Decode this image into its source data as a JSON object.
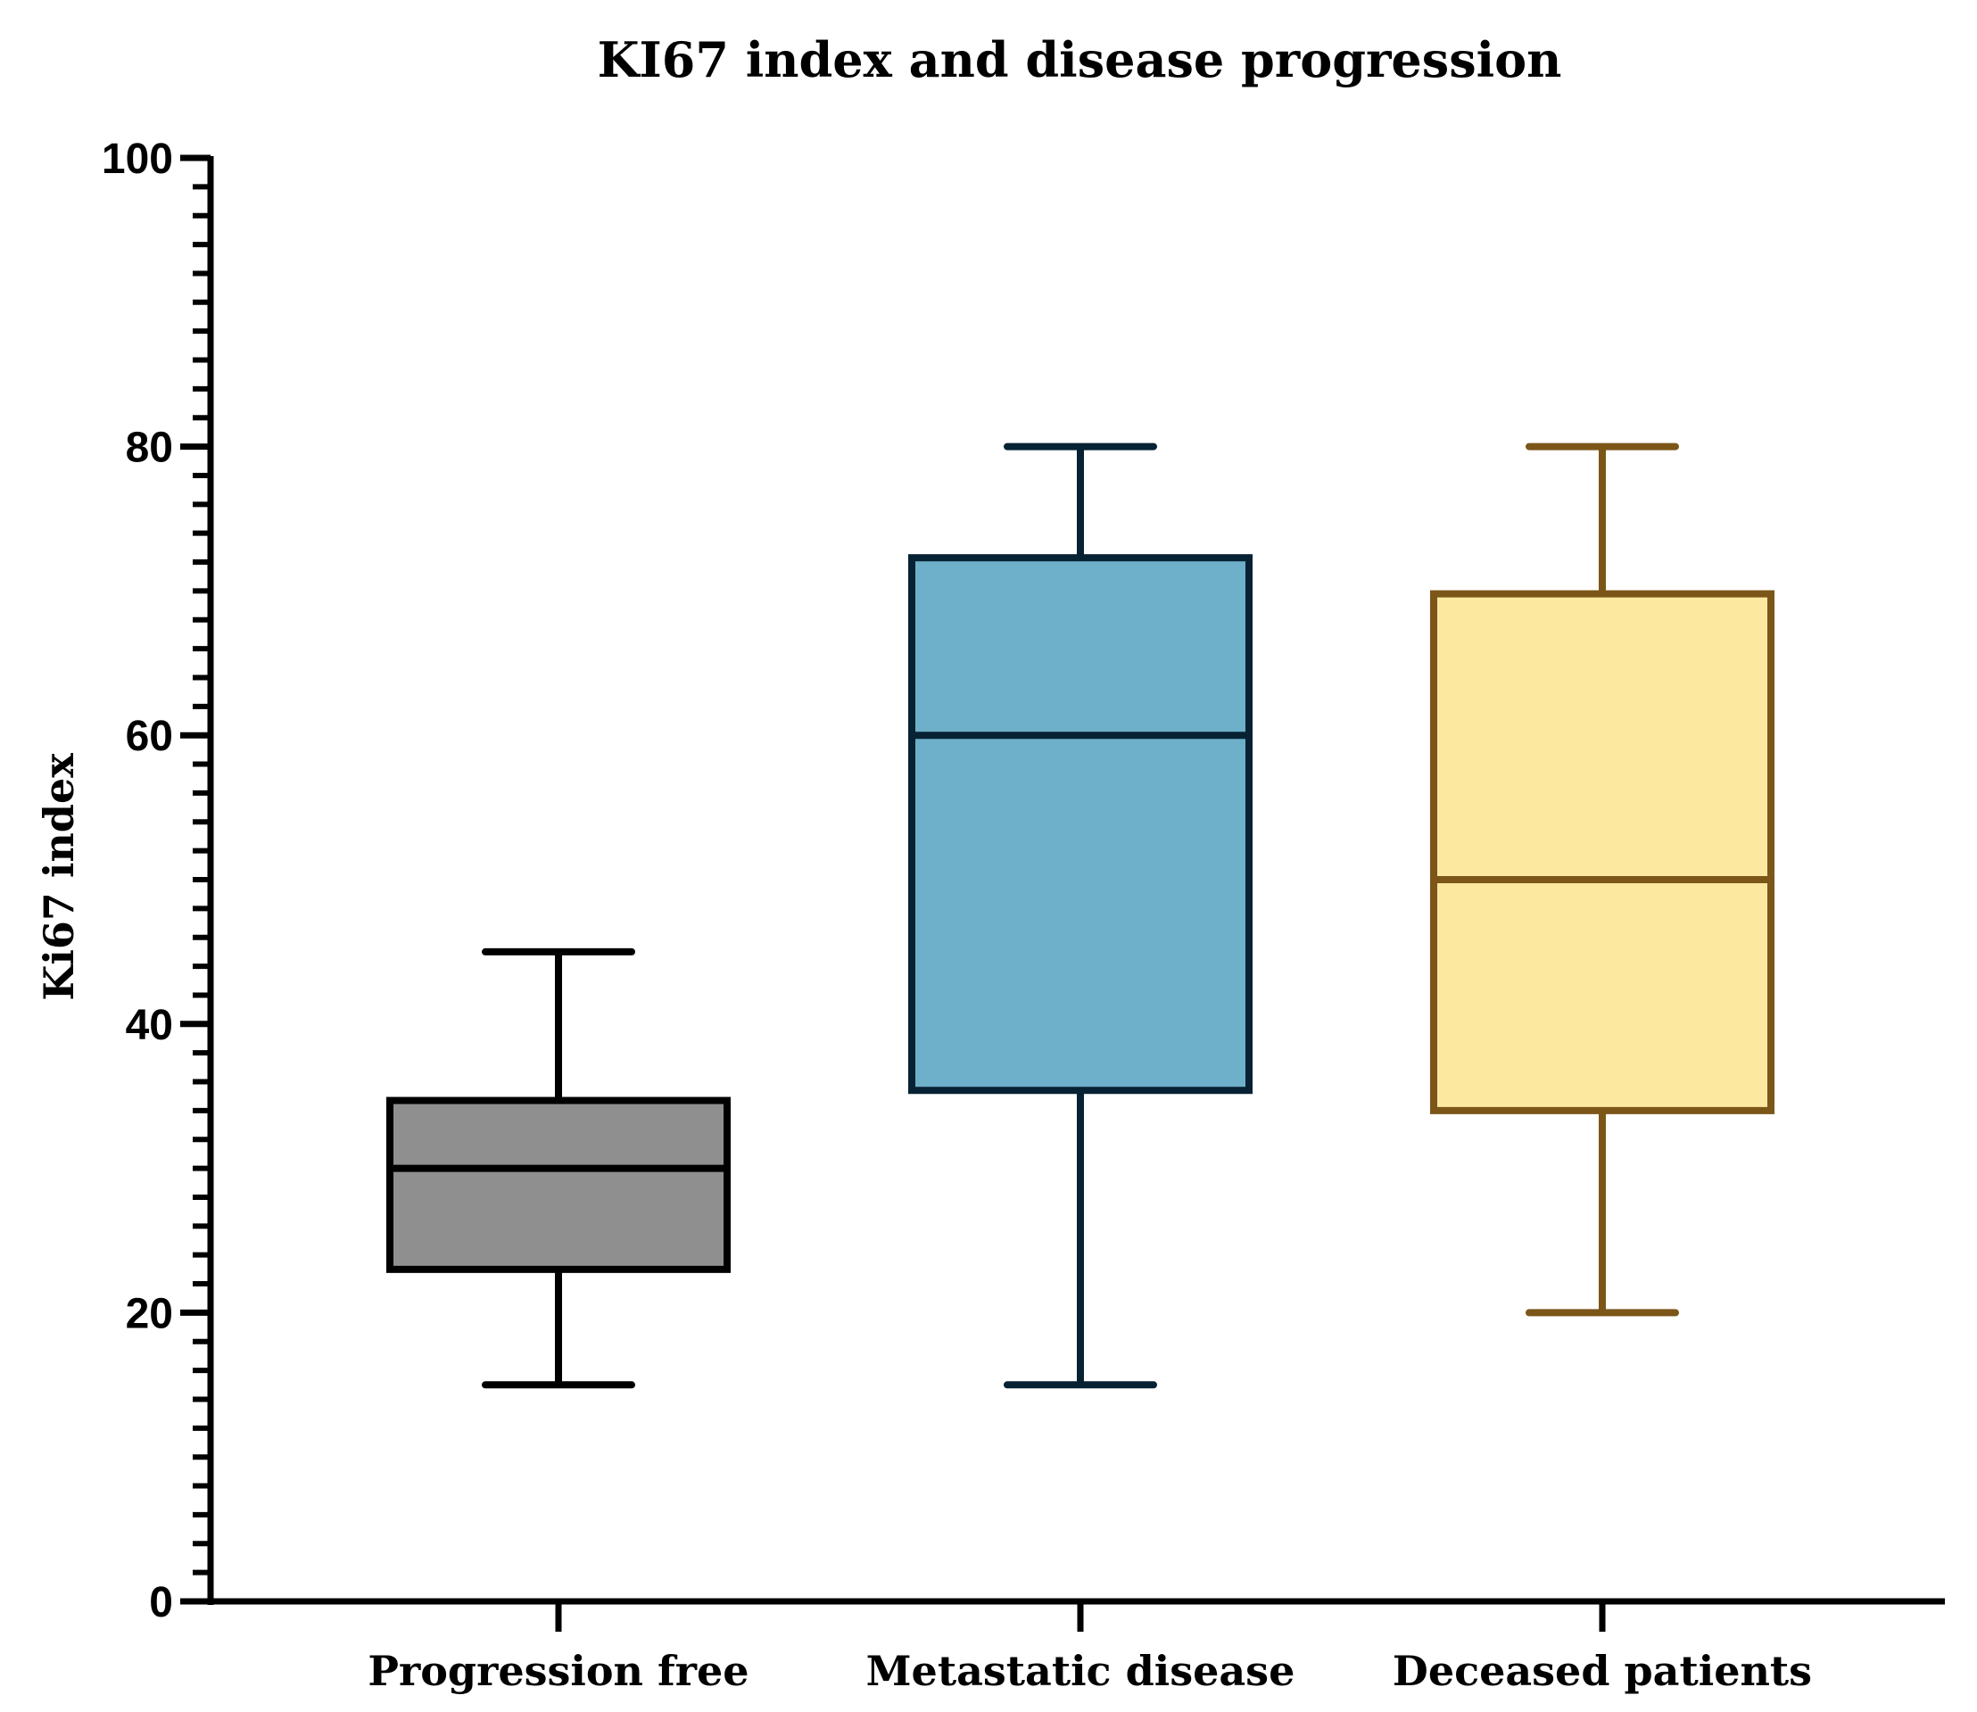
{
  "chart_data": {
    "type": "box",
    "title": "KI67 index and disease progression",
    "xlabel": "",
    "ylabel": "Ki67 index",
    "ylim": [
      0,
      100
    ],
    "yticks": [
      "0",
      "20",
      "40",
      "60",
      "80",
      "100"
    ],
    "y_minor_tick_step": 2,
    "grid": false,
    "legend": "none",
    "categories": [
      "Progression free",
      "Metastatic disease",
      "Deceased patients"
    ],
    "series": [
      {
        "category": "Progression free",
        "min": 15,
        "q1": 23,
        "median": 30,
        "q3": 34.7,
        "max": 45,
        "fill": "#8f8f8f",
        "stroke": "#000000"
      },
      {
        "category": "Metastatic disease",
        "min": 15,
        "q1": 35.4,
        "median": 60,
        "q3": 72.3,
        "max": 80,
        "fill": "#6eafc9",
        "stroke": "#062233"
      },
      {
        "category": "Deceased patients",
        "min": 20,
        "q1": 34,
        "median": 50,
        "q3": 69.8,
        "max": 80,
        "fill": "#fde8a0",
        "stroke": "#7b5618"
      }
    ]
  }
}
